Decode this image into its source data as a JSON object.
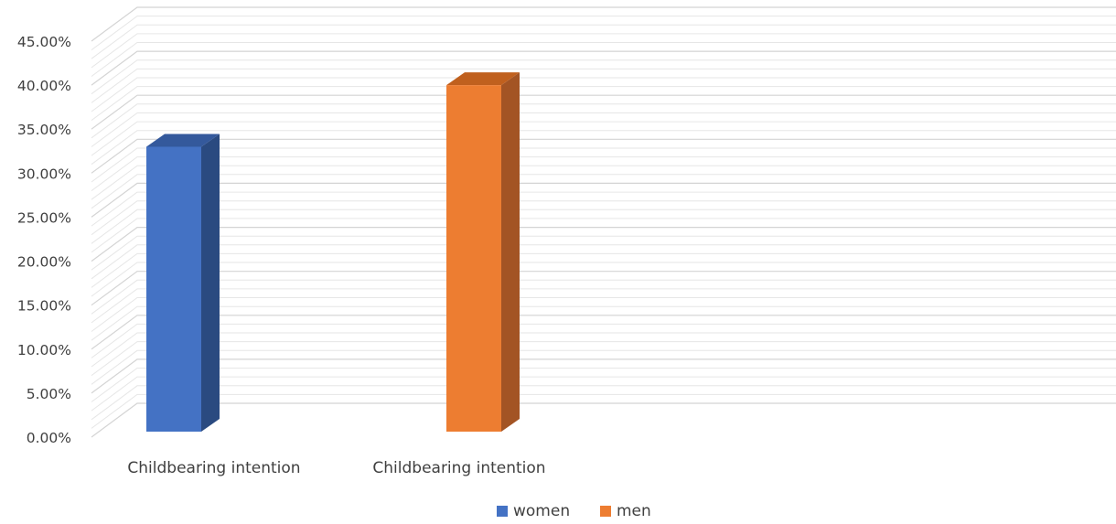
{
  "chart_data": {
    "type": "bar",
    "title": "",
    "xlabel": "",
    "ylabel": "",
    "categories": [
      "Childbearing intention",
      "Childbearing intention"
    ],
    "series": [
      {
        "name": "women",
        "values": [
          0.33,
          null
        ],
        "color": "#4472C4",
        "side_color": "#2A4A80",
        "top_color": "#34599C"
      },
      {
        "name": "men",
        "values": [
          null,
          0.4
        ],
        "color": "#ED7D31",
        "side_color": "#A35424",
        "top_color": "#C0601E"
      }
    ],
    "ylim": [
      0,
      0.45
    ],
    "yticks": [
      {
        "value": 0.0,
        "label": "0.00%"
      },
      {
        "value": 0.05,
        "label": "5.00%"
      },
      {
        "value": 0.1,
        "label": "10.00%"
      },
      {
        "value": 0.15,
        "label": "15.00%"
      },
      {
        "value": 0.2,
        "label": "20.00%"
      },
      {
        "value": 0.25,
        "label": "25.00%"
      },
      {
        "value": 0.3,
        "label": "30.00%"
      },
      {
        "value": 0.35,
        "label": "35.00%"
      },
      {
        "value": 0.4,
        "label": "40.00%"
      },
      {
        "value": 0.45,
        "label": "45.00%"
      }
    ],
    "minor_gridlines": true,
    "grid": true,
    "style": "3d-clustered-column",
    "legend": {
      "position": "bottom",
      "entries": [
        {
          "label": "women",
          "color": "#4472C4"
        },
        {
          "label": "men",
          "color": "#ED7D31"
        }
      ]
    }
  }
}
